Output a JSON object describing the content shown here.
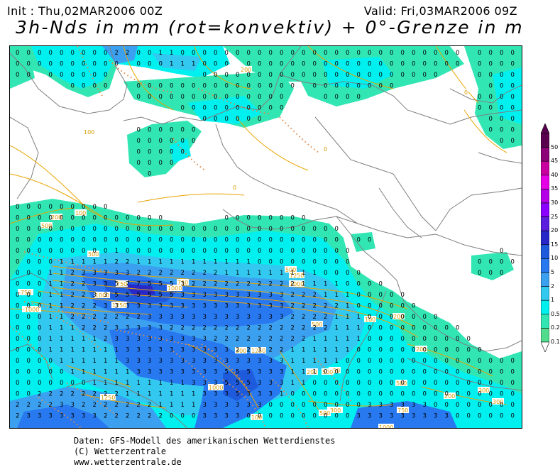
{
  "header": {
    "init": "Init : Thu,02MAR2006 00Z",
    "valid": "Valid: Fri,03MAR2006 09Z",
    "title": "3h-Nds in mm (rot=konvektiv) + 0°-Grenze in m"
  },
  "colors": {
    "land_border": "#7f7f7f",
    "contour": "#e8a400",
    "convective_dots": "#e08a4a",
    "frame": "#000000"
  },
  "legend": {
    "levels": [
      "50",
      "45",
      "40",
      "35",
      "30",
      "25",
      "20",
      "15",
      "10",
      "5",
      "2",
      "1",
      "0.5",
      "0.2",
      "0.1"
    ],
    "colors": [
      "#5a0050",
      "#8c0078",
      "#c800a0",
      "#e600e6",
      "#b400e6",
      "#8c00ff",
      "#5a1edc",
      "#2828c8",
      "#1e5adc",
      "#2878f0",
      "#3ca0f0",
      "#32c8f0",
      "#00f0f0",
      "#32e6b4",
      "#50dc8c"
    ]
  },
  "contour_labels": [
    {
      "text": "200"
    },
    {
      "text": "100"
    },
    {
      "text": "0"
    },
    {
      "text": "500"
    },
    {
      "text": "100"
    },
    {
      "text": "200"
    },
    {
      "text": "500"
    },
    {
      "text": "-750"
    },
    {
      "text": "-1000"
    },
    {
      "text": "1250"
    },
    {
      "text": "750"
    },
    {
      "text": "1000"
    },
    {
      "text": "1250"
    },
    {
      "text": "1000"
    },
    {
      "text": "500"
    },
    {
      "text": "750"
    },
    {
      "text": "1000"
    },
    {
      "text": "750"
    },
    {
      "text": "200"
    },
    {
      "text": "100"
    },
    {
      "text": "500"
    },
    {
      "text": "300"
    },
    {
      "text": "500"
    },
    {
      "text": "200"
    },
    {
      "text": "1000"
    },
    {
      "text": "1250"
    },
    {
      "text": "-300"
    },
    {
      "text": "500"
    },
    {
      "text": "100"
    },
    {
      "text": "300"
    },
    {
      "text": "1000"
    },
    {
      "text": "1250"
    },
    {
      "text": "0"
    },
    {
      "text": "0"
    },
    {
      "text": "200"
    },
    {
      "text": "300"
    },
    {
      "text": "500"
    },
    {
      "text": "200"
    },
    {
      "text": "750"
    }
  ],
  "footer": {
    "line1": "Daten: GFS-Modell des amerikanischen Wetterdienstes",
    "line2": "(C) Wetterzentrale",
    "line3": "www.wetterzentrale.de"
  }
}
